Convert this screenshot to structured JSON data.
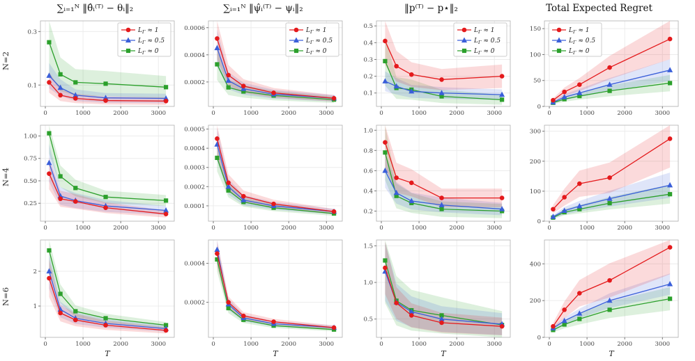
{
  "chart_data": {
    "type": "line",
    "xlabel": "T",
    "x": [
      100,
      400,
      800,
      1600,
      3200
    ],
    "xlim": [
      -130,
      3420
    ],
    "xticks": [
      0,
      1000,
      2000,
      3000
    ],
    "xticklabels": [
      "0",
      "1000",
      "2000",
      "3000"
    ],
    "col_titles": [
      "∑ᵢ₌₁ᴺ ‖θ̂ᵢ⁽ᵀ⁾ − θᵢ‖₂",
      "∑ᵢ₌₁ᴺ ‖ψ̂ᵢ⁽ᵀ⁾ − ψᵢ‖₂",
      "‖p⁽ᵀ⁾ − p⋆‖₂",
      "Total Expected Regret"
    ],
    "series": [
      {
        "name": "L_Γ ≈ 1",
        "color": "#e41a1c",
        "marker": "circle"
      },
      {
        "name": "L_Γ ≈ 0.5",
        "color": "#3a5fd9",
        "marker": "triangle"
      },
      {
        "name": "L_Γ ≈ 0",
        "color": "#2ca02c",
        "marker": "square"
      }
    ],
    "rows": [
      {
        "label": "N=2",
        "plots": [
          {
            "ylim": [
              0.02,
              0.34
            ],
            "yticks": [
              0.1,
              0.3
            ],
            "yticklabels": [
              "0.1",
              "0.3"
            ],
            "legend": "ne",
            "series": [
              {
                "values": [
                  0.11,
                  0.062,
                  0.05,
                  0.042,
                  0.04
                ],
                "band": 0.35
              },
              {
                "values": [
                  0.135,
                  0.09,
                  0.062,
                  0.052,
                  0.05
                ],
                "band": 0.35
              },
              {
                "values": [
                  0.26,
                  0.14,
                  0.11,
                  0.105,
                  0.092
                ],
                "band": 0.45
              }
            ]
          },
          {
            "ylim": [
              2e-05,
              0.00065
            ],
            "yticks": [
              0.0002,
              0.0004,
              0.0006
            ],
            "yticklabels": [
              "0.0002",
              "0.0004",
              "0.0006"
            ],
            "legend": "ne",
            "series": [
              {
                "values": [
                  0.00052,
                  0.00025,
                  0.00017,
                  0.00012,
                  8e-05
                ],
                "band": 0.3
              },
              {
                "values": [
                  0.00045,
                  0.00021,
                  0.00015,
                  0.00011,
                  8e-05
                ],
                "band": 0.3
              },
              {
                "values": [
                  0.00033,
                  0.00016,
                  0.00013,
                  0.0001,
                  7e-05
                ],
                "band": 0.35
              }
            ]
          },
          {
            "ylim": [
              0.02,
              0.53
            ],
            "yticks": [
              0.1,
              0.2,
              0.3,
              0.4,
              0.5
            ],
            "yticklabels": [
              "0.1",
              "0.2",
              "0.3",
              "0.4",
              "0.5"
            ],
            "legend": "ne",
            "series": [
              {
                "values": [
                  0.41,
                  0.26,
                  0.21,
                  0.18,
                  0.2
                ],
                "band": 0.35
              },
              {
                "values": [
                  0.17,
                  0.14,
                  0.11,
                  0.1,
                  0.09
                ],
                "band": 0.35
              },
              {
                "values": [
                  0.29,
                  0.13,
                  0.12,
                  0.08,
                  0.06
                ],
                "band": 0.5
              }
            ]
          },
          {
            "ylim": [
              0,
              165
            ],
            "yticks": [
              0,
              50,
              100,
              150
            ],
            "yticklabels": [
              "0",
              "50",
              "100",
              "150"
            ],
            "legend": "nw",
            "series": [
              {
                "values": [
                  12,
                  28,
                  42,
                  75,
                  130
                ],
                "band": 0.3
              },
              {
                "values": [
                  8,
                  18,
                  26,
                  42,
                  70
                ],
                "band": 0.3
              },
              {
                "values": [
                  7,
                  14,
                  20,
                  30,
                  45
                ],
                "band": 0.35
              }
            ]
          }
        ]
      },
      {
        "label": "N=4",
        "plots": [
          {
            "ylim": [
              0.05,
              1.12
            ],
            "yticks": [
              0.25,
              0.5,
              0.75,
              1.0
            ],
            "yticklabels": [
              "0.25",
              "0.50",
              "0.75",
              "1.00"
            ],
            "series": [
              {
                "values": [
                  0.58,
                  0.3,
                  0.27,
                  0.2,
                  0.13
                ],
                "band": 0.3
              },
              {
                "values": [
                  0.7,
                  0.33,
                  0.28,
                  0.22,
                  0.17
                ],
                "band": 0.3
              },
              {
                "values": [
                  1.03,
                  0.55,
                  0.42,
                  0.32,
                  0.28
                ],
                "band": 0.22
              }
            ]
          },
          {
            "ylim": [
              2e-05,
              0.00052
            ],
            "yticks": [
              0.0001,
              0.0002,
              0.0003,
              0.0004,
              0.0005
            ],
            "yticklabels": [
              "0.0001",
              "0.0002",
              "0.0003",
              "0.0004",
              "0.0005"
            ],
            "series": [
              {
                "values": [
                  0.00045,
                  0.00022,
                  0.00015,
                  0.00011,
                  7e-05
                ],
                "band": 0.2
              },
              {
                "values": [
                  0.00042,
                  0.0002,
                  0.00013,
                  0.0001,
                  7e-05
                ],
                "band": 0.2
              },
              {
                "values": [
                  0.00035,
                  0.00018,
                  0.00012,
                  9e-05,
                  6e-05
                ],
                "band": 0.2
              }
            ]
          },
          {
            "ylim": [
              0.1,
              1.05
            ],
            "yticks": [
              0.2,
              0.4,
              0.6,
              0.8,
              1.0
            ],
            "yticklabels": [
              "0.2",
              "0.4",
              "0.6",
              "0.8",
              "1.0"
            ],
            "series": [
              {
                "values": [
                  0.88,
                  0.53,
                  0.48,
                  0.33,
                  0.33
                ],
                "band": 0.28
              },
              {
                "values": [
                  0.6,
                  0.38,
                  0.3,
                  0.26,
                  0.22
                ],
                "band": 0.28
              },
              {
                "values": [
                  0.78,
                  0.35,
                  0.28,
                  0.22,
                  0.2
                ],
                "band": 0.35
              }
            ]
          },
          {
            "ylim": [
              0,
              320
            ],
            "yticks": [
              0,
              100,
              200,
              300
            ],
            "yticklabels": [
              "0",
              "100",
              "200",
              "300"
            ],
            "series": [
              {
                "values": [
                  40,
                  80,
                  125,
                  145,
                  275
                ],
                "band": 0.35
              },
              {
                "values": [
                  15,
                  35,
                  50,
                  75,
                  120
                ],
                "band": 0.35
              },
              {
                "values": [
                  12,
                  30,
                  40,
                  60,
                  90
                ],
                "band": 0.35
              }
            ]
          }
        ]
      },
      {
        "label": "N=6",
        "plots": [
          {
            "ylim": [
              0.1,
              2.9
            ],
            "yticks": [
              1,
              2
            ],
            "yticklabels": [
              "1",
              "2"
            ],
            "series": [
              {
                "values": [
                  1.8,
                  0.8,
                  0.6,
                  0.45,
                  0.3
                ],
                "band": 0.3
              },
              {
                "values": [
                  2.0,
                  0.9,
                  0.65,
                  0.5,
                  0.35
                ],
                "band": 0.25
              },
              {
                "values": [
                  2.6,
                  1.35,
                  0.85,
                  0.65,
                  0.45
                ],
                "band": 0.2
              }
            ]
          },
          {
            "ylim": [
              2e-05,
              0.00052
            ],
            "yticks": [
              0.0002,
              0.0004
            ],
            "yticklabels": [
              "0.0002",
              "0.0004"
            ],
            "series": [
              {
                "values": [
                  0.00045,
                  0.0002,
                  0.00013,
                  0.0001,
                  7e-05
                ],
                "band": 0.15
              },
              {
                "values": [
                  0.00047,
                  0.00019,
                  0.00012,
                  9e-05,
                  7e-05
                ],
                "band": 0.15
              },
              {
                "values": [
                  0.00042,
                  0.00017,
                  0.00011,
                  8e-05,
                  6e-05
                ],
                "band": 0.15
              }
            ]
          },
          {
            "ylim": [
              0.25,
              1.58
            ],
            "yticks": [
              0.5,
              1.0,
              1.5
            ],
            "yticklabels": [
              "0.5",
              "1.0",
              "1.5"
            ],
            "series": [
              {
                "values": [
                  1.2,
                  0.72,
                  0.55,
                  0.45,
                  0.4
                ],
                "band": 0.3
              },
              {
                "values": [
                  1.15,
                  0.73,
                  0.6,
                  0.5,
                  0.43
                ],
                "band": 0.35
              },
              {
                "values": [
                  1.3,
                  0.75,
                  0.62,
                  0.55,
                  0.42
                ],
                "band": 0.45
              }
            ]
          },
          {
            "ylim": [
              0,
              530
            ],
            "yticks": [
              0,
              200,
              400
            ],
            "yticklabels": [
              "0",
              "200",
              "400"
            ],
            "series": [
              {
                "values": [
                  60,
                  150,
                  240,
                  310,
                  490
                ],
                "band": 0.3
              },
              {
                "values": [
                  50,
                  90,
                  130,
                  200,
                  290
                ],
                "band": 0.2
              },
              {
                "values": [
                  40,
                  70,
                  100,
                  150,
                  210
                ],
                "band": 0.3
              }
            ]
          }
        ]
      }
    ]
  }
}
